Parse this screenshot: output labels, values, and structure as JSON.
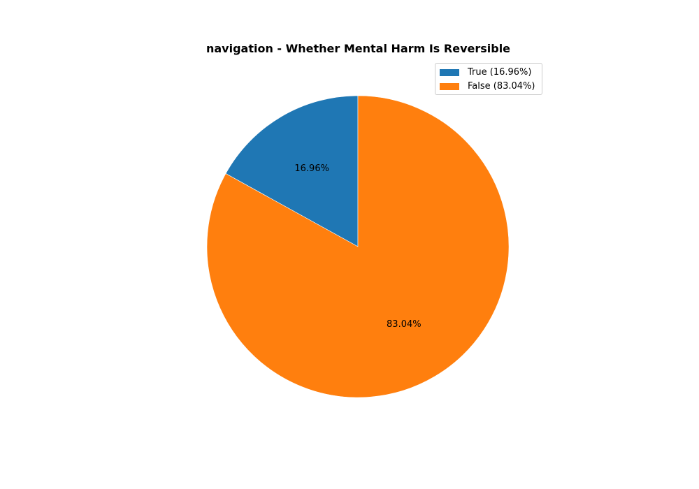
{
  "colors": {
    "true": "#1f77b4",
    "false": "#ff7f0e"
  },
  "legend": {
    "placement": "top-right",
    "items": [
      {
        "label": "True (16.96%)",
        "color": "#1f77b4"
      },
      {
        "label": "False (83.04%)",
        "color": "#ff7f0e"
      }
    ]
  },
  "chart_data": {
    "type": "pie",
    "title": "navigation - Whether Mental Harm Is Reversible",
    "categories": [
      "True",
      "False"
    ],
    "values": [
      16.96,
      83.04
    ],
    "slice_labels": [
      "16.96%",
      "83.04%"
    ],
    "start_angle": "top, counter-clockwise"
  }
}
